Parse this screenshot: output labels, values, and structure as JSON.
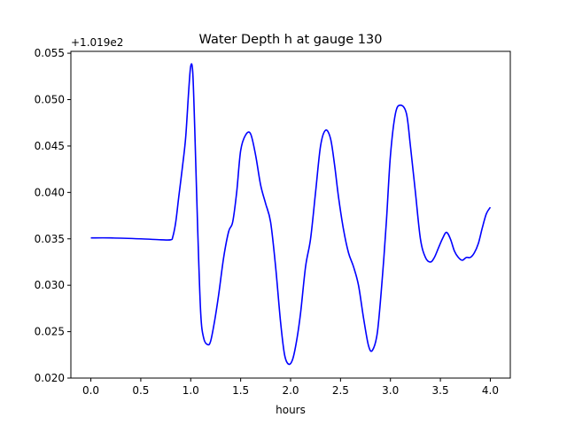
{
  "chart_data": {
    "type": "line",
    "title": "Water Depth h at gauge 130",
    "xlabel": "hours",
    "ylabel": "",
    "y_offset_label": "+1.019e2",
    "xlim": [
      -0.2,
      4.2
    ],
    "ylim": [
      0.02,
      0.0552
    ],
    "x_ticks": [
      0.0,
      0.5,
      1.0,
      1.5,
      2.0,
      2.5,
      3.0,
      3.5,
      4.0
    ],
    "x_tick_labels": [
      "0.0",
      "0.5",
      "1.0",
      "1.5",
      "2.0",
      "2.5",
      "3.0",
      "3.5",
      "4.0"
    ],
    "y_ticks": [
      0.02,
      0.025,
      0.03,
      0.035,
      0.04,
      0.045,
      0.05,
      0.055
    ],
    "y_tick_labels": [
      "0.020",
      "0.025",
      "0.030",
      "0.035",
      "0.040",
      "0.045",
      "0.050",
      "0.055"
    ],
    "grid": false,
    "series": [
      {
        "color": "#0000ff",
        "x": [
          0.0,
          0.2,
          0.5,
          0.7,
          0.8,
          0.82,
          0.85,
          0.88,
          0.92,
          0.95,
          0.98,
          1.0,
          1.02,
          1.04,
          1.07,
          1.1,
          1.13,
          1.17,
          1.2,
          1.24,
          1.28,
          1.33,
          1.38,
          1.42,
          1.46,
          1.5,
          1.55,
          1.6,
          1.65,
          1.7,
          1.75,
          1.8,
          1.85,
          1.9,
          1.94,
          1.98,
          2.02,
          2.06,
          2.1,
          2.15,
          2.2,
          2.25,
          2.3,
          2.35,
          2.4,
          2.44,
          2.48,
          2.53,
          2.58,
          2.63,
          2.68,
          2.73,
          2.78,
          2.82,
          2.87,
          2.92,
          2.96,
          3.0,
          3.05,
          3.1,
          3.16,
          3.2,
          3.25,
          3.3,
          3.35,
          3.4,
          3.44,
          3.48,
          3.52,
          3.56,
          3.6,
          3.64,
          3.68,
          3.72,
          3.76,
          3.8,
          3.84,
          3.88,
          3.92,
          3.96,
          4.0
        ],
        "y": [
          0.0351,
          0.0351,
          0.035,
          0.0349,
          0.0349,
          0.0352,
          0.0368,
          0.0395,
          0.043,
          0.046,
          0.051,
          0.0536,
          0.053,
          0.047,
          0.036,
          0.027,
          0.0243,
          0.0236,
          0.024,
          0.0262,
          0.029,
          0.033,
          0.0358,
          0.0368,
          0.04,
          0.0445,
          0.0462,
          0.0463,
          0.044,
          0.0408,
          0.0388,
          0.0368,
          0.032,
          0.026,
          0.0225,
          0.0215,
          0.022,
          0.024,
          0.027,
          0.032,
          0.035,
          0.04,
          0.045,
          0.0467,
          0.0458,
          0.043,
          0.0395,
          0.036,
          0.0335,
          0.032,
          0.03,
          0.0265,
          0.0235,
          0.023,
          0.025,
          0.031,
          0.037,
          0.044,
          0.0485,
          0.0494,
          0.0485,
          0.045,
          0.04,
          0.035,
          0.033,
          0.0325,
          0.033,
          0.034,
          0.035,
          0.0357,
          0.035,
          0.0337,
          0.033,
          0.0327,
          0.033,
          0.033,
          0.0335,
          0.0345,
          0.0362,
          0.0377,
          0.0384
        ]
      }
    ]
  }
}
